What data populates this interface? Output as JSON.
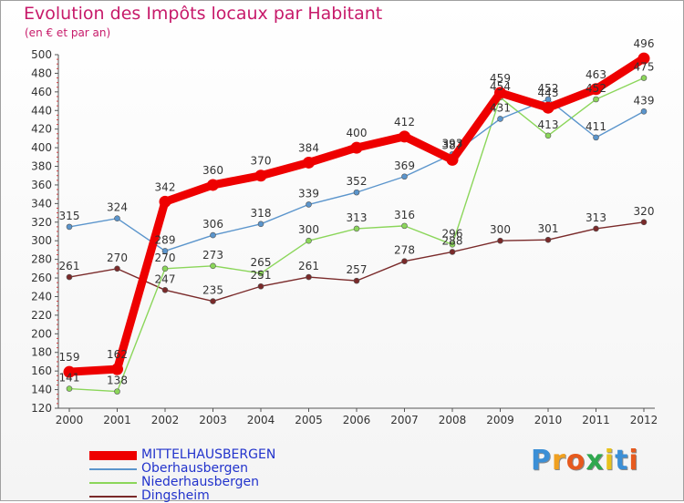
{
  "header": {
    "title": "Evolution des Impôts locaux par Habitant",
    "subtitle": "(en € et par an)"
  },
  "chart_data": {
    "type": "line",
    "title": "Evolution des Impôts locaux par Habitant",
    "subtitle": "(en € et par an)",
    "xlabel": "",
    "ylabel": "",
    "ylim": [
      120,
      500
    ],
    "y_tick_step": 20,
    "grid": false,
    "legend_position": "bottom-left",
    "x": [
      "2000",
      "2001",
      "2002",
      "2003",
      "2004",
      "2005",
      "2006",
      "2007",
      "2008",
      "2009",
      "2010",
      "2011",
      "2012"
    ],
    "series": [
      {
        "name": "Dingsheim",
        "color": "#7a2a2a",
        "values": [
          261,
          270,
          247,
          235,
          251,
          261,
          257,
          278,
          288,
          300,
          301,
          313,
          320
        ],
        "labels": [
          "261",
          "270",
          "247",
          "235",
          "251",
          "261",
          "257",
          "278",
          "288",
          "300",
          "301",
          "313",
          "320"
        ]
      },
      {
        "name": "Niederhausbergen",
        "color": "#8bd65a",
        "values": [
          141,
          138,
          270,
          273,
          265,
          300,
          313,
          316,
          296,
          454,
          413,
          452,
          475
        ],
        "labels": [
          "141",
          "138",
          "270",
          "273",
          "265",
          "300",
          "313",
          "316",
          "296",
          "454",
          "413",
          "452",
          "475"
        ]
      },
      {
        "name": "Oberhausbergen",
        "color": "#5b95cc",
        "values": [
          315,
          324,
          289,
          306,
          318,
          339,
          352,
          369,
          393,
          431,
          452,
          411,
          439
        ],
        "labels": [
          "315",
          "324",
          "289",
          "306",
          "318",
          "339",
          "352",
          "369",
          "393",
          "431",
          "452",
          "411",
          "439"
        ]
      },
      {
        "name": "MITTELHAUSBERGEN",
        "color": "#ee0000",
        "values": [
          159,
          162,
          342,
          360,
          370,
          384,
          400,
          412,
          387,
          459,
          443,
          463,
          496
        ],
        "labels": [
          "159",
          "162",
          "342",
          "360",
          "370",
          "384",
          "400",
          "412",
          "387",
          "459",
          "443",
          "463",
          "496"
        ]
      }
    ]
  },
  "legend": {
    "items": [
      {
        "label": "MITTELHAUSBERGEN",
        "color": "#ee0000"
      },
      {
        "label": "Oberhausbergen",
        "color": "#5b95cc"
      },
      {
        "label": "Niederhausbergen",
        "color": "#8bd65a"
      },
      {
        "label": "Dingsheim",
        "color": "#7a2a2a"
      }
    ]
  },
  "logo": {
    "text": "Proxiti",
    "letters": [
      {
        "ch": "P",
        "color": "#3b8fd6"
      },
      {
        "ch": "r",
        "color": "#f0a020"
      },
      {
        "ch": "o",
        "color": "#e65a1e"
      },
      {
        "ch": "x",
        "color": "#2fa84f"
      },
      {
        "ch": "i",
        "color": "#e8c21c"
      },
      {
        "ch": "t",
        "color": "#3b8fd6"
      },
      {
        "ch": "i",
        "color": "#e65a1e"
      }
    ]
  }
}
